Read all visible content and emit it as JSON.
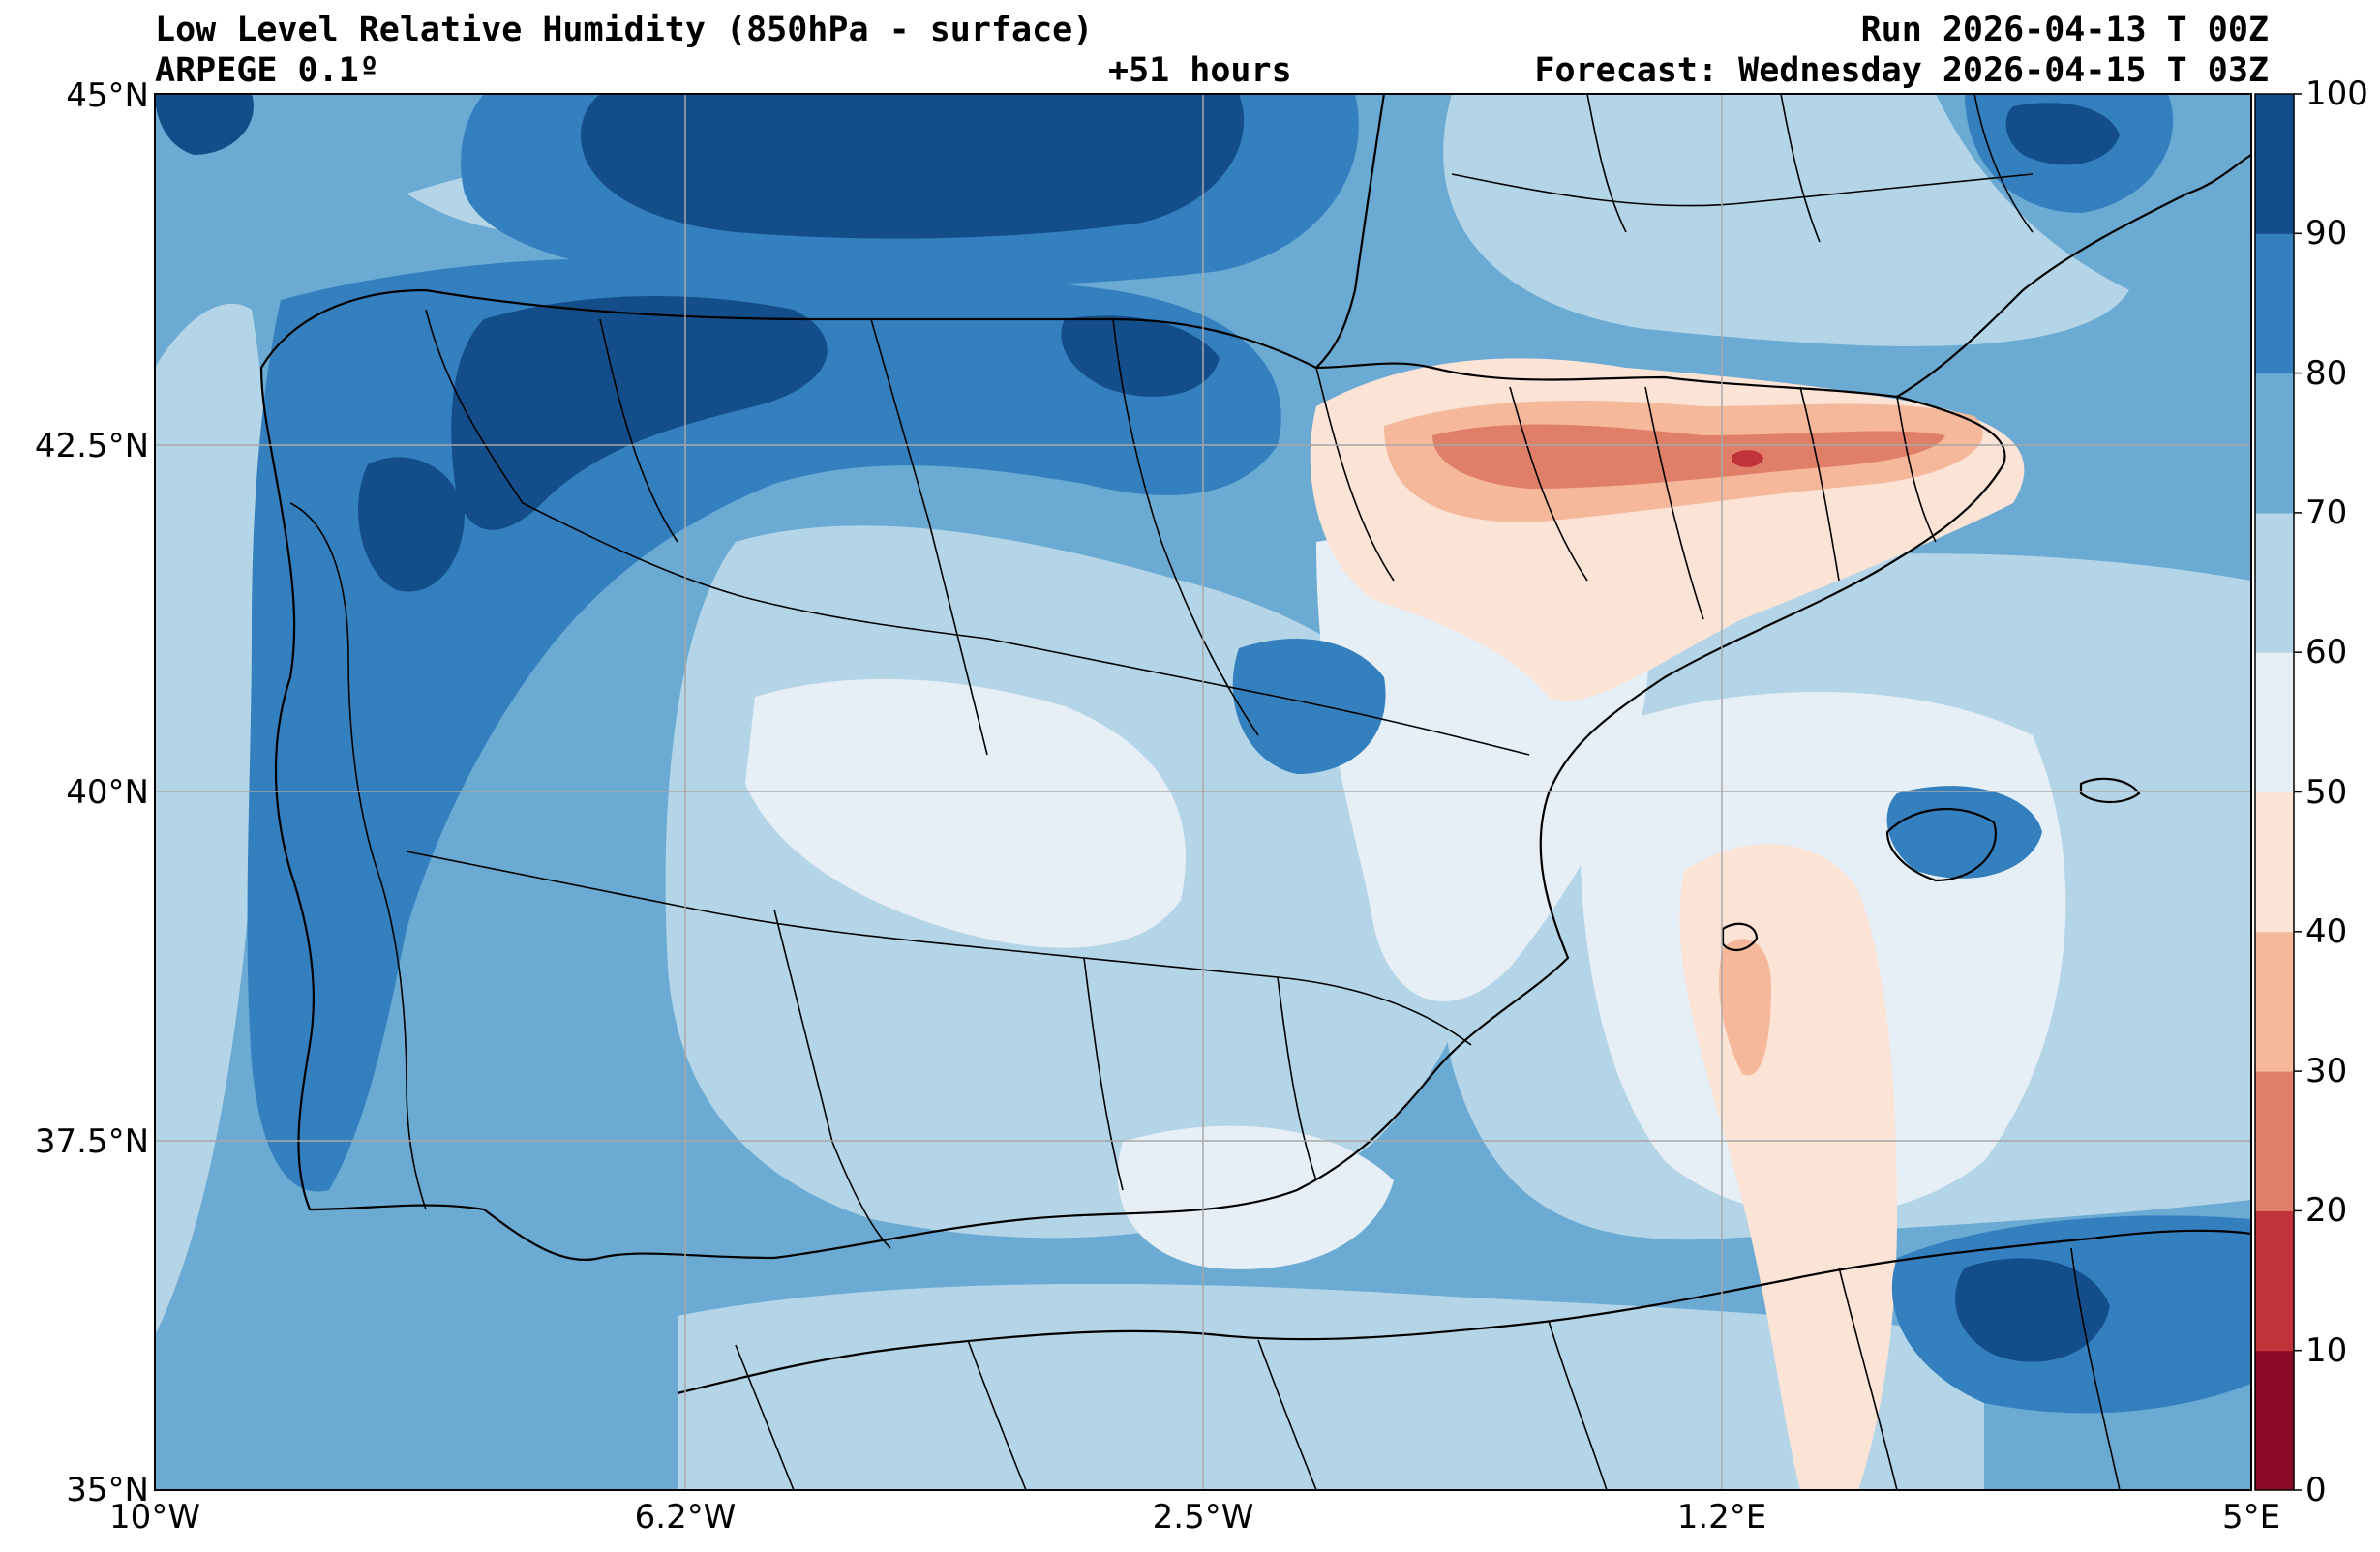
{
  "header": {
    "title": "Low Level Relative Humidity (850hPa - surface)",
    "model": "ARPEGE 0.1º",
    "lead_time": "+51 hours",
    "run": "Run 2026-04-13 T 00Z",
    "forecast": "Forecast: Wednesday 2026-04-15 T 03Z"
  },
  "map": {
    "lat_ticks": [
      "45°N",
      "42.5°N",
      "40°N",
      "37.5°N",
      "35°N"
    ],
    "lon_ticks": [
      "10°W",
      "6.2°W",
      "2.5°W",
      "1.2°E",
      "5°E"
    ]
  },
  "colorbar": {
    "levels": [
      "0",
      "10",
      "20",
      "30",
      "40",
      "50",
      "60",
      "70",
      "80",
      "90",
      "100"
    ],
    "colors": [
      "#8b0a26",
      "#c2323a",
      "#e07f68",
      "#f6b89a",
      "#fbe3d6",
      "#e6eef6",
      "#b4d5e8",
      "#6aaad3",
      "#3480bf",
      "#144e8a"
    ]
  },
  "chart_data": {
    "type": "filled-contour-map",
    "title": "Low Level Relative Humidity (850hPa - surface)",
    "units": "%",
    "levels": [
      0,
      10,
      20,
      30,
      40,
      50,
      60,
      70,
      80,
      90,
      100
    ],
    "lat_range": [
      35,
      45
    ],
    "lon_range": [
      -10,
      5
    ],
    "grid": true
  }
}
